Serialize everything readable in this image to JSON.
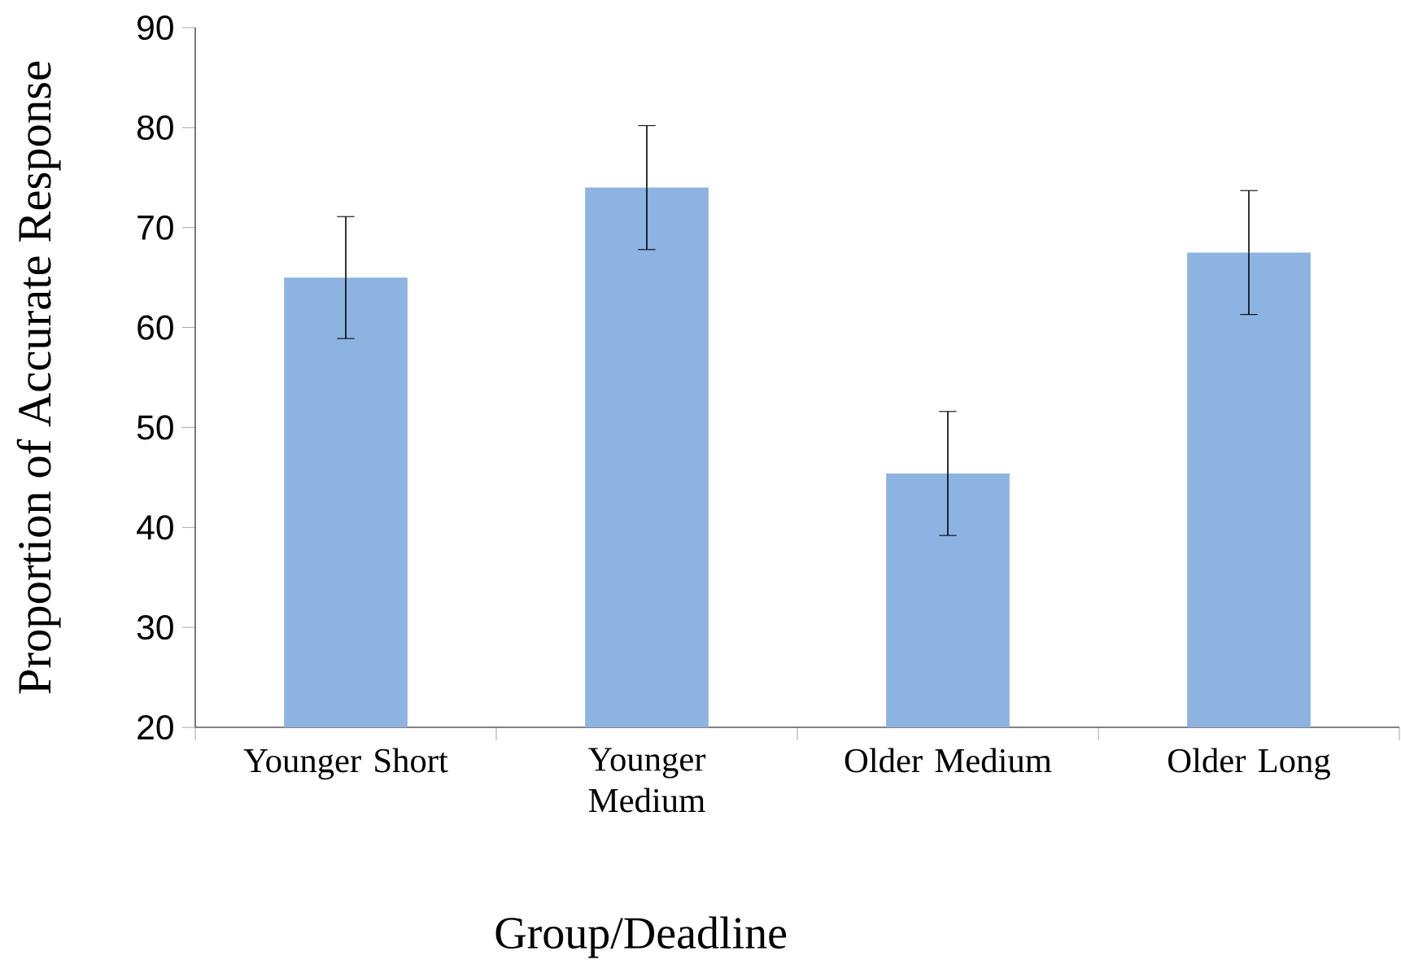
{
  "chart_data": {
    "type": "bar",
    "xlabel": "Group/Deadline",
    "ylabel": "Proportion of Accurate Response",
    "categories": [
      "Younger Short",
      "Younger Medium",
      "Older Medium",
      "Older Long"
    ],
    "values": [
      65,
      74,
      45.4,
      67.5
    ],
    "errors": [
      6.1,
      6.2,
      6.2,
      6.2
    ],
    "color": "#8db3e2",
    "ylim": [
      20,
      90
    ],
    "yticks": [
      20,
      30,
      40,
      50,
      60,
      70,
      80,
      90
    ]
  }
}
